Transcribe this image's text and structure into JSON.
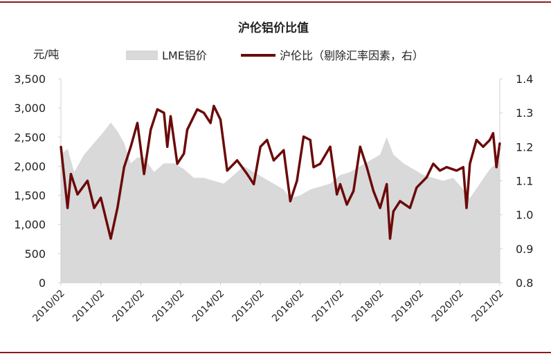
{
  "chart_data": {
    "type": "area+line",
    "title": "沪伦铝价比值",
    "left_axis": {
      "unit_label": "元/吨",
      "ylim": [
        0,
        3500
      ],
      "ticks": [
        0,
        500,
        1000,
        1500,
        2000,
        2500,
        3000,
        3500
      ],
      "tick_labels": [
        "0",
        "500",
        "1,000",
        "1,500",
        "2,000",
        "2,500",
        "3,000",
        "3,500"
      ]
    },
    "right_axis": {
      "ylim": [
        0.8,
        1.4
      ],
      "ticks": [
        0.8,
        0.9,
        1.0,
        1.1,
        1.2,
        1.3,
        1.4
      ],
      "tick_labels": [
        "0.8",
        "0.9",
        "1.0",
        "1.1",
        "1.2",
        "1.3",
        "1.4"
      ]
    },
    "x_axis": {
      "xlim": [
        "2010/02",
        "2021/02"
      ],
      "tick_labels": [
        "2010/02",
        "2011/02",
        "2012/02",
        "2013/02",
        "2014/02",
        "2015/02",
        "2016/02",
        "2017/02",
        "2018/02",
        "2019/02",
        "2020/02",
        "2021/02"
      ]
    },
    "grid": false,
    "legend": {
      "placement": "top",
      "entries": [
        "LME铝价",
        "沪伦比（剔除汇率因素，右）"
      ]
    },
    "series": [
      {
        "name": "LME铝价",
        "kind": "area",
        "axis": "left",
        "color": "#d9d9d9",
        "x": [
          "2010/02",
          "2010/04",
          "2010/06",
          "2010/09",
          "2010/12",
          "2011/03",
          "2011/05",
          "2011/07",
          "2011/09",
          "2011/11",
          "2012/01",
          "2012/03",
          "2012/06",
          "2012/09",
          "2012/12",
          "2013/03",
          "2013/06",
          "2013/09",
          "2013/12",
          "2014/03",
          "2014/06",
          "2014/09",
          "2014/12",
          "2015/03",
          "2015/06",
          "2015/09",
          "2015/11",
          "2016/02",
          "2016/05",
          "2016/08",
          "2016/11",
          "2017/02",
          "2017/05",
          "2017/08",
          "2017/11",
          "2018/02",
          "2018/04",
          "2018/06",
          "2018/09",
          "2018/12",
          "2019/03",
          "2019/06",
          "2019/09",
          "2019/12",
          "2020/03",
          "2020/05",
          "2020/08",
          "2020/11",
          "2021/02"
        ],
        "values": [
          2200,
          2300,
          1900,
          2200,
          2400,
          2600,
          2750,
          2600,
          2400,
          2050,
          2150,
          2150,
          1900,
          2050,
          2050,
          1950,
          1800,
          1800,
          1750,
          1700,
          1850,
          2000,
          1900,
          1800,
          1700,
          1600,
          1450,
          1500,
          1600,
          1650,
          1700,
          1850,
          1900,
          2000,
          2100,
          2200,
          2500,
          2200,
          2050,
          1950,
          1850,
          1800,
          1750,
          1800,
          1600,
          1450,
          1700,
          1950,
          2100
        ]
      },
      {
        "name": "沪伦比（剔除汇率因素，右）",
        "kind": "line",
        "axis": "right",
        "color": "#6b0a0a",
        "x": [
          "2010/02",
          "2010/04",
          "2010/05",
          "2010/07",
          "2010/10",
          "2010/12",
          "2011/02",
          "2011/04",
          "2011/05",
          "2011/07",
          "2011/09",
          "2011/11",
          "2012/01",
          "2012/03",
          "2012/05",
          "2012/07",
          "2012/09",
          "2012/10",
          "2012/11",
          "2013/01",
          "2013/03",
          "2013/04",
          "2013/07",
          "2013/09",
          "2013/11",
          "2013/12",
          "2014/02",
          "2014/04",
          "2014/07",
          "2014/10",
          "2014/12",
          "2015/02",
          "2015/04",
          "2015/06",
          "2015/09",
          "2015/11",
          "2016/01",
          "2016/03",
          "2016/05",
          "2016/06",
          "2016/08",
          "2016/11",
          "2017/01",
          "2017/02",
          "2017/04",
          "2017/06",
          "2017/08",
          "2017/10",
          "2017/12",
          "2018/02",
          "2018/04",
          "2018/05",
          "2018/06",
          "2018/08",
          "2018/11",
          "2019/01",
          "2019/04",
          "2019/06",
          "2019/08",
          "2019/10",
          "2020/01",
          "2020/03",
          "2020/04",
          "2020/05",
          "2020/07",
          "2020/09",
          "2020/11",
          "2020/12",
          "2021/01",
          "2021/02"
        ],
        "values": [
          1.2,
          1.02,
          1.12,
          1.06,
          1.1,
          1.02,
          1.05,
          0.97,
          0.93,
          1.02,
          1.14,
          1.2,
          1.27,
          1.12,
          1.25,
          1.31,
          1.3,
          1.2,
          1.29,
          1.15,
          1.18,
          1.25,
          1.31,
          1.3,
          1.27,
          1.32,
          1.28,
          1.13,
          1.16,
          1.12,
          1.09,
          1.2,
          1.22,
          1.16,
          1.19,
          1.04,
          1.1,
          1.23,
          1.22,
          1.14,
          1.15,
          1.2,
          1.06,
          1.09,
          1.03,
          1.07,
          1.2,
          1.14,
          1.07,
          1.02,
          1.09,
          0.93,
          1.01,
          1.04,
          1.02,
          1.08,
          1.11,
          1.15,
          1.13,
          1.14,
          1.13,
          1.14,
          1.02,
          1.15,
          1.22,
          1.2,
          1.22,
          1.24,
          1.14,
          1.21
        ]
      }
    ]
  }
}
